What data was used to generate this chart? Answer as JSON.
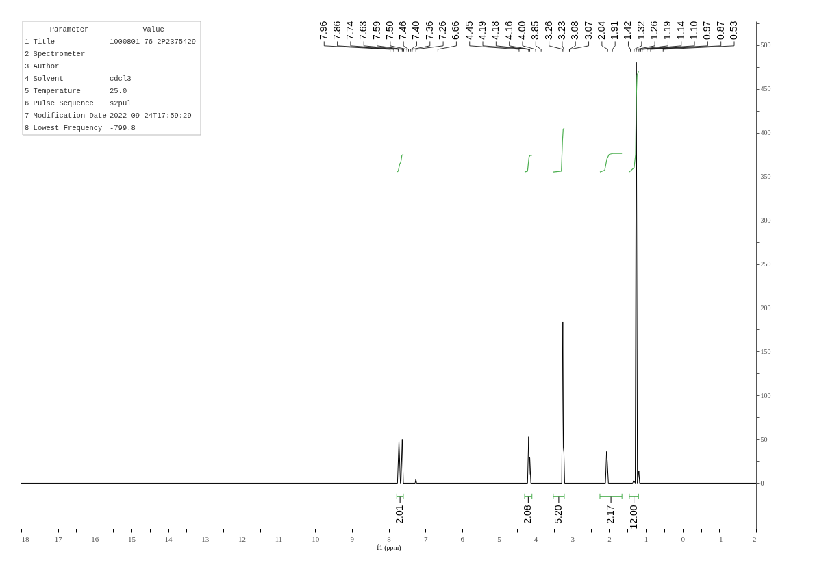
{
  "chart_data": {
    "type": "line",
    "xlabel": "f1 (ppm)",
    "xlim": [
      18,
      -2
    ],
    "xticks": [
      18,
      {
        "value": 17.5,
        "label": null
      },
      17,
      {
        "value": 16.5,
        "label": null
      },
      16,
      {
        "value": 15.5,
        "label": null
      },
      15,
      {
        "value": 14.5,
        "label": null
      },
      14,
      {
        "value": 13.5,
        "label": null
      },
      13,
      {
        "value": 12.5,
        "label": null
      },
      12,
      {
        "value": 11.5,
        "label": null
      },
      11,
      {
        "value": 10.5,
        "label": null
      },
      10,
      {
        "value": 9.5,
        "label": null
      },
      9,
      {
        "value": 8.5,
        "label": null
      },
      8,
      {
        "value": 7.5,
        "label": null
      },
      7,
      {
        "value": 6.5,
        "label": null
      },
      6,
      {
        "value": 5.5,
        "label": null
      },
      5,
      {
        "value": 4.5,
        "label": null
      },
      4,
      {
        "value": 3.5,
        "label": null
      },
      3,
      {
        "value": 2.5,
        "label": null
      },
      2,
      {
        "value": 1.5,
        "label": null
      },
      1,
      {
        "value": 0.5,
        "label": null
      },
      0,
      {
        "value": -0.5,
        "label": null
      },
      {
        "value": -1,
        "label": "-1"
      },
      {
        "value": -1.5,
        "label": null
      },
      {
        "value": -2,
        "label": "-2"
      }
    ],
    "ylim": [
      -52,
      527
    ],
    "yticks": [
      {
        "value": -25,
        "label": null
      },
      0,
      {
        "value": 25,
        "label": null
      },
      50,
      {
        "value": 75,
        "label": null
      },
      100,
      {
        "value": 125,
        "label": null
      },
      150,
      {
        "value": 175,
        "label": null
      },
      200,
      {
        "value": 225,
        "label": null
      },
      250,
      {
        "value": 275,
        "label": null
      },
      300,
      {
        "value": 325,
        "label": null
      },
      350,
      {
        "value": 375,
        "label": null
      },
      400,
      {
        "value": 425,
        "label": null
      },
      450,
      {
        "value": 475,
        "label": null
      },
      500,
      {
        "value": 525,
        "label": null
      }
    ],
    "grid": false,
    "series": [
      {
        "color": "#000000",
        "x": [
          18,
          7.76,
          7.72,
          7.68,
          7.665,
          7.63,
          7.6,
          7.28,
          7.26,
          7.24,
          4.22,
          4.19,
          4.175,
          4.16,
          4.13,
          3.29,
          3.26,
          3.245,
          3.23,
          3.21,
          2.1,
          2.07,
          2.05,
          2.02,
          1.36,
          1.33,
          1.29,
          1.26,
          1.23,
          1.19,
          1.17,
          -2
        ],
        "values": [
          0,
          0,
          48,
          0,
          0,
          50,
          0,
          0,
          5,
          0,
          0,
          53,
          10,
          30,
          0,
          0,
          184,
          40,
          35,
          0,
          0,
          36,
          25,
          0,
          0,
          3,
          0,
          480,
          0,
          14,
          0,
          0
        ]
      },
      {
        "color": "#4caf50",
        "x": [
          7.78,
          7.74,
          7.7,
          7.67,
          7.64,
          7.6
        ],
        "values": [
          355,
          356,
          364,
          366,
          374,
          375
        ]
      },
      {
        "color": "#4caf50",
        "x": [
          4.3,
          4.22,
          4.18,
          4.15,
          4.1
        ],
        "values": [
          355,
          356,
          372,
          374,
          374
        ]
      },
      {
        "color": "#4caf50",
        "x": [
          3.52,
          3.3,
          3.27,
          3.25,
          3.22
        ],
        "values": [
          355,
          356,
          390,
          404,
          405
        ]
      },
      {
        "color": "#4caf50",
        "x": [
          2.25,
          2.12,
          2.06,
          2.0,
          1.9,
          1.65
        ],
        "values": [
          355,
          357,
          370,
          375,
          376,
          376
        ]
      },
      {
        "color": "#4caf50",
        "x": [
          1.45,
          1.32,
          1.28,
          1.26,
          1.24,
          1.2
        ],
        "values": [
          355,
          360,
          375,
          440,
          465,
          470
        ]
      }
    ],
    "annotations": [
      "Parameter",
      "Value",
      "1 Title",
      "1000801-76-2P2375429",
      "2 Spectrometer",
      null,
      "3 Author",
      null,
      "4 Solvent",
      "cdcl3",
      "5 Temperature",
      "25.0",
      "6 Pulse Sequence",
      "s2pul",
      "7 Modification Date",
      "2022-09-24T17:59:29",
      "8 Lowest Frequency",
      "-799.8",
      "7.96",
      "7.86",
      "7.74",
      "7.63",
      "7.59",
      "7.50",
      "7.46",
      "7.40",
      "7.36",
      "7.26",
      "6.66",
      "4.45",
      "4.19",
      "4.18",
      "4.16",
      "4.00",
      "3.85",
      "3.26",
      "3.23",
      "3.08",
      "3.07",
      "2.04",
      "1.91",
      "1.42",
      "1.32",
      "1.26",
      "1.19",
      "1.14",
      "1.10",
      "0.97",
      "0.87",
      "0.53",
      "2.01",
      "2.08",
      "5.20",
      "2.17",
      "12.00"
    ]
  }
}
